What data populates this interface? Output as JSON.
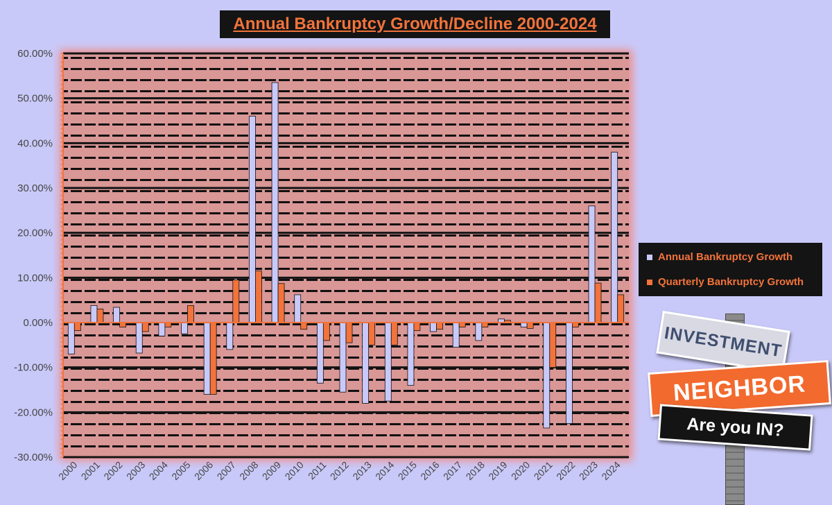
{
  "chart_data": {
    "type": "bar",
    "title": "Annual Bankruptcy Growth/Decline 2000-2024",
    "xlabel": "",
    "ylabel": "",
    "ylim": [
      -30,
      60
    ],
    "y_ticks": [
      "-30.00%",
      "-20.00%",
      "-10.00%",
      "0.00%",
      "10.00%",
      "20.00%",
      "30.00%",
      "40.00%",
      "50.00%",
      "60.00%"
    ],
    "y_tick_values": [
      -30,
      -20,
      -10,
      0,
      10,
      20,
      30,
      40,
      50,
      60
    ],
    "categories": [
      "2000",
      "2001",
      "2002",
      "2003",
      "2004",
      "2005",
      "2006",
      "2007",
      "2008",
      "2009",
      "2010",
      "2011",
      "2012",
      "2013",
      "2014",
      "2015",
      "2016",
      "2017",
      "2018",
      "2019",
      "2020",
      "2021",
      "2022",
      "2023",
      "2024"
    ],
    "series": [
      {
        "name": "Annual Bankruptcy Growth",
        "color": "#c9c9f9",
        "values": [
          -7.0,
          3.8,
          3.4,
          -6.8,
          -3.0,
          -2.5,
          -16.0,
          -6.0,
          46.0,
          53.5,
          6.2,
          -13.5,
          -15.5,
          -18.0,
          -17.5,
          -14.0,
          -2.0,
          -5.5,
          -4.0,
          0.8,
          -1.0,
          -23.5,
          -22.5,
          26.0,
          38.0
        ]
      },
      {
        "name": "Quarterly Bankruptcy Growth",
        "color": "#f2733b",
        "values": [
          -1.8,
          3.0,
          -1.0,
          -2.0,
          -1.0,
          3.8,
          -16.0,
          9.5,
          11.5,
          8.7,
          -1.5,
          -4.0,
          -4.5,
          -5.0,
          -5.0,
          -1.8,
          -1.5,
          -1.0,
          -1.0,
          0.5,
          -1.3,
          -10.0,
          -1.0,
          8.8,
          6.2
        ]
      }
    ],
    "grid": true,
    "legend_position": "right"
  },
  "badge": {
    "line1": "INVESTMENT",
    "line2": "NEIGHBOR",
    "line3": "Are you IN?"
  }
}
